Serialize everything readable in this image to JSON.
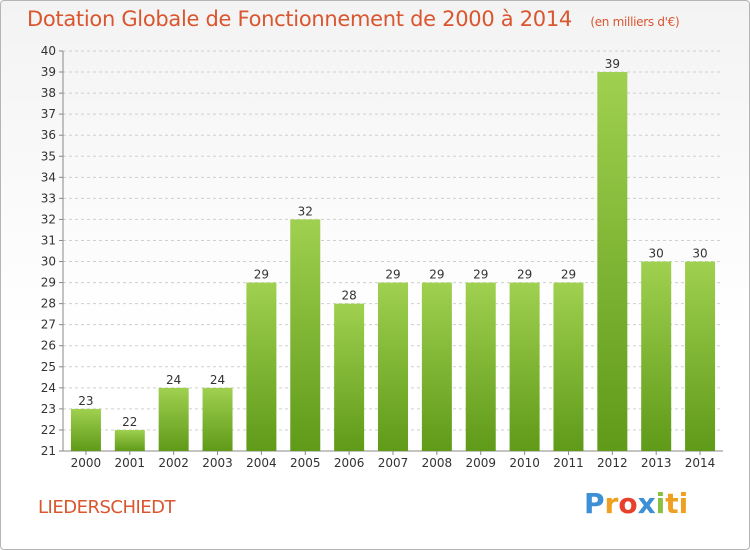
{
  "header": {
    "title": "Dotation Globale de Fonctionnement de 2000 à 2014",
    "unit": "(en milliers d'€)"
  },
  "footer": {
    "commune": "LIEDERSCHIEDT",
    "logo": [
      "P",
      "r",
      "o",
      "x",
      "i",
      "ti"
    ]
  },
  "colors": {
    "title": "#d9562f",
    "bar_top": "#a0d050",
    "bar_bottom": "#5f9a18"
  },
  "chart_data": {
    "type": "bar",
    "title": "Dotation Globale de Fonctionnement de 2000 à 2014",
    "subtitle": "(en milliers d'€)",
    "categories": [
      "2000",
      "2001",
      "2002",
      "2003",
      "2004",
      "2005",
      "2006",
      "2007",
      "2008",
      "2009",
      "2010",
      "2011",
      "2012",
      "2013",
      "2014"
    ],
    "values": [
      23,
      22,
      24,
      24,
      29,
      32,
      28,
      29,
      29,
      29,
      29,
      29,
      39,
      30,
      30
    ],
    "ylim": [
      21,
      40
    ],
    "yticks": [
      21,
      22,
      23,
      24,
      25,
      26,
      27,
      28,
      29,
      30,
      31,
      32,
      33,
      34,
      35,
      36,
      37,
      38,
      39,
      40
    ],
    "grid": "horizontal dashed",
    "data_labels": true
  }
}
